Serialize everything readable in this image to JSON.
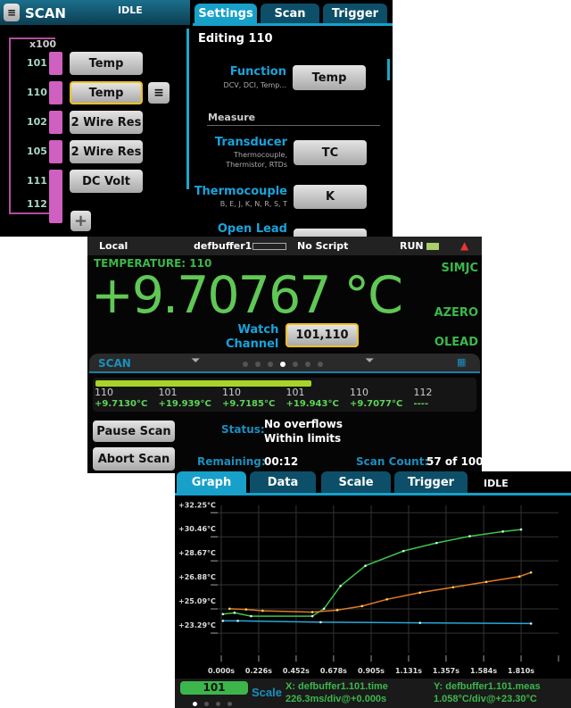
{
  "scan_panel": {
    "title": "SCAN",
    "status": "IDLE",
    "multiplier": "x100",
    "channels": [
      {
        "ch": "101",
        "func": "Temp"
      },
      {
        "ch": "110",
        "func": "Temp",
        "selected": true
      },
      {
        "ch": "102",
        "func": "2 Wire Res"
      },
      {
        "ch": "105",
        "func": "2 Wire Res"
      },
      {
        "ch": "111",
        "func": "DC Volt"
      },
      {
        "ch": "112",
        "func": ""
      }
    ],
    "add_label": "+",
    "tabs": [
      "Settings",
      "Scan",
      "Trigger"
    ],
    "active_tab": "Settings",
    "editing": "Editing 110",
    "function": {
      "label": "Function",
      "hint": "DCV, DCI, Temp...",
      "value": "Temp"
    },
    "section": "Measure",
    "transducer": {
      "label": "Transducer",
      "hint1": "Thermocouple,",
      "hint2": "Thermistor, RTDs",
      "value": "TC"
    },
    "thermocouple": {
      "label": "Thermocouple",
      "hint": "B, E, J, K, N, R, S, T",
      "value": "K"
    },
    "open_lead": {
      "label": "Open Lead"
    }
  },
  "home_panel": {
    "status_bar": {
      "mode": "Local",
      "buffer": "defbuffer1",
      "script": "No Script",
      "run": "RUN"
    },
    "function_label": "TEMPERATURE: 110",
    "reading": "+9.70767 °C",
    "indicators": [
      "SIMJC",
      "AZERO",
      "OLEAD"
    ],
    "watch_label1": "Watch",
    "watch_label2": "Channel",
    "watch_value": "101,110",
    "swipe_title": "SCAN",
    "active_dot": 3,
    "dot_count": 7,
    "progress": 0.57,
    "readings": [
      {
        "ch": "110",
        "val": "+9.7130°C"
      },
      {
        "ch": "101",
        "val": "+19.939°C"
      },
      {
        "ch": "110",
        "val": "+9.7185°C"
      },
      {
        "ch": "101",
        "val": "+19.943°C"
      },
      {
        "ch": "110",
        "val": "+9.7077°C"
      },
      {
        "ch": "112",
        "val": "----"
      }
    ],
    "pause_label": "Pause Scan",
    "abort_label": "Abort Scan",
    "status_label": "Status:",
    "status_line1": "No overflows",
    "status_line2": "Within limits",
    "remaining_label": "Remaining:",
    "remaining_value": "00:12",
    "count_label": "Scan Count:",
    "count_value": "57 of 100"
  },
  "graph_panel": {
    "tabs": [
      "Graph",
      "Data",
      "Scale",
      "Trigger"
    ],
    "active_tab": "Graph",
    "status": "IDLE",
    "channel": "101",
    "scale_label": "Scale",
    "x_info1": "X: defbuffer1.101.time",
    "x_info2": "226.3ms/div@+0.000s",
    "y_info1": "Y: defbuffer1.101.meas",
    "y_info2": "1.058°C/div@+23.30°C",
    "active_dot": 0,
    "dot_count": 4
  },
  "chart_data": {
    "type": "line",
    "yticks": [
      "+32.25°C",
      "+30.46°C",
      "+28.67°C",
      "+26.88°C",
      "+25.09°C",
      "+23.29°C"
    ],
    "xticks": [
      "0.000s",
      "0.226s",
      "0.452s",
      "0.678s",
      "0.905s",
      "1.131s",
      "1.357s",
      "1.584s",
      "1.810s"
    ],
    "xlim": [
      0,
      2.036
    ],
    "ylim": [
      21.5,
      32.8
    ],
    "grid": true,
    "series": [
      {
        "color": "#3ec44a",
        "points": [
          [
            0.01,
            24.7
          ],
          [
            0.08,
            24.8
          ],
          [
            0.18,
            24.55
          ],
          [
            0.55,
            24.55
          ],
          [
            0.62,
            25.1
          ],
          [
            0.72,
            26.8
          ],
          [
            0.87,
            28.3
          ],
          [
            1.1,
            29.4
          ],
          [
            1.3,
            30.0
          ],
          [
            1.5,
            30.5
          ],
          [
            1.7,
            30.85
          ],
          [
            1.81,
            31.0
          ]
        ]
      },
      {
        "color": "#e07a2a",
        "points": [
          [
            0.05,
            25.1
          ],
          [
            0.15,
            25.05
          ],
          [
            0.25,
            24.95
          ],
          [
            0.55,
            24.85
          ],
          [
            0.7,
            25.0
          ],
          [
            0.85,
            25.3
          ],
          [
            1.0,
            25.8
          ],
          [
            1.2,
            26.3
          ],
          [
            1.4,
            26.7
          ],
          [
            1.6,
            27.1
          ],
          [
            1.8,
            27.5
          ],
          [
            1.87,
            27.8
          ]
        ]
      },
      {
        "color": "#2aa6d8",
        "points": [
          [
            0.01,
            24.2
          ],
          [
            0.1,
            24.2
          ],
          [
            0.6,
            24.1
          ],
          [
            1.2,
            24.05
          ],
          [
            1.87,
            24.0
          ]
        ]
      }
    ]
  }
}
